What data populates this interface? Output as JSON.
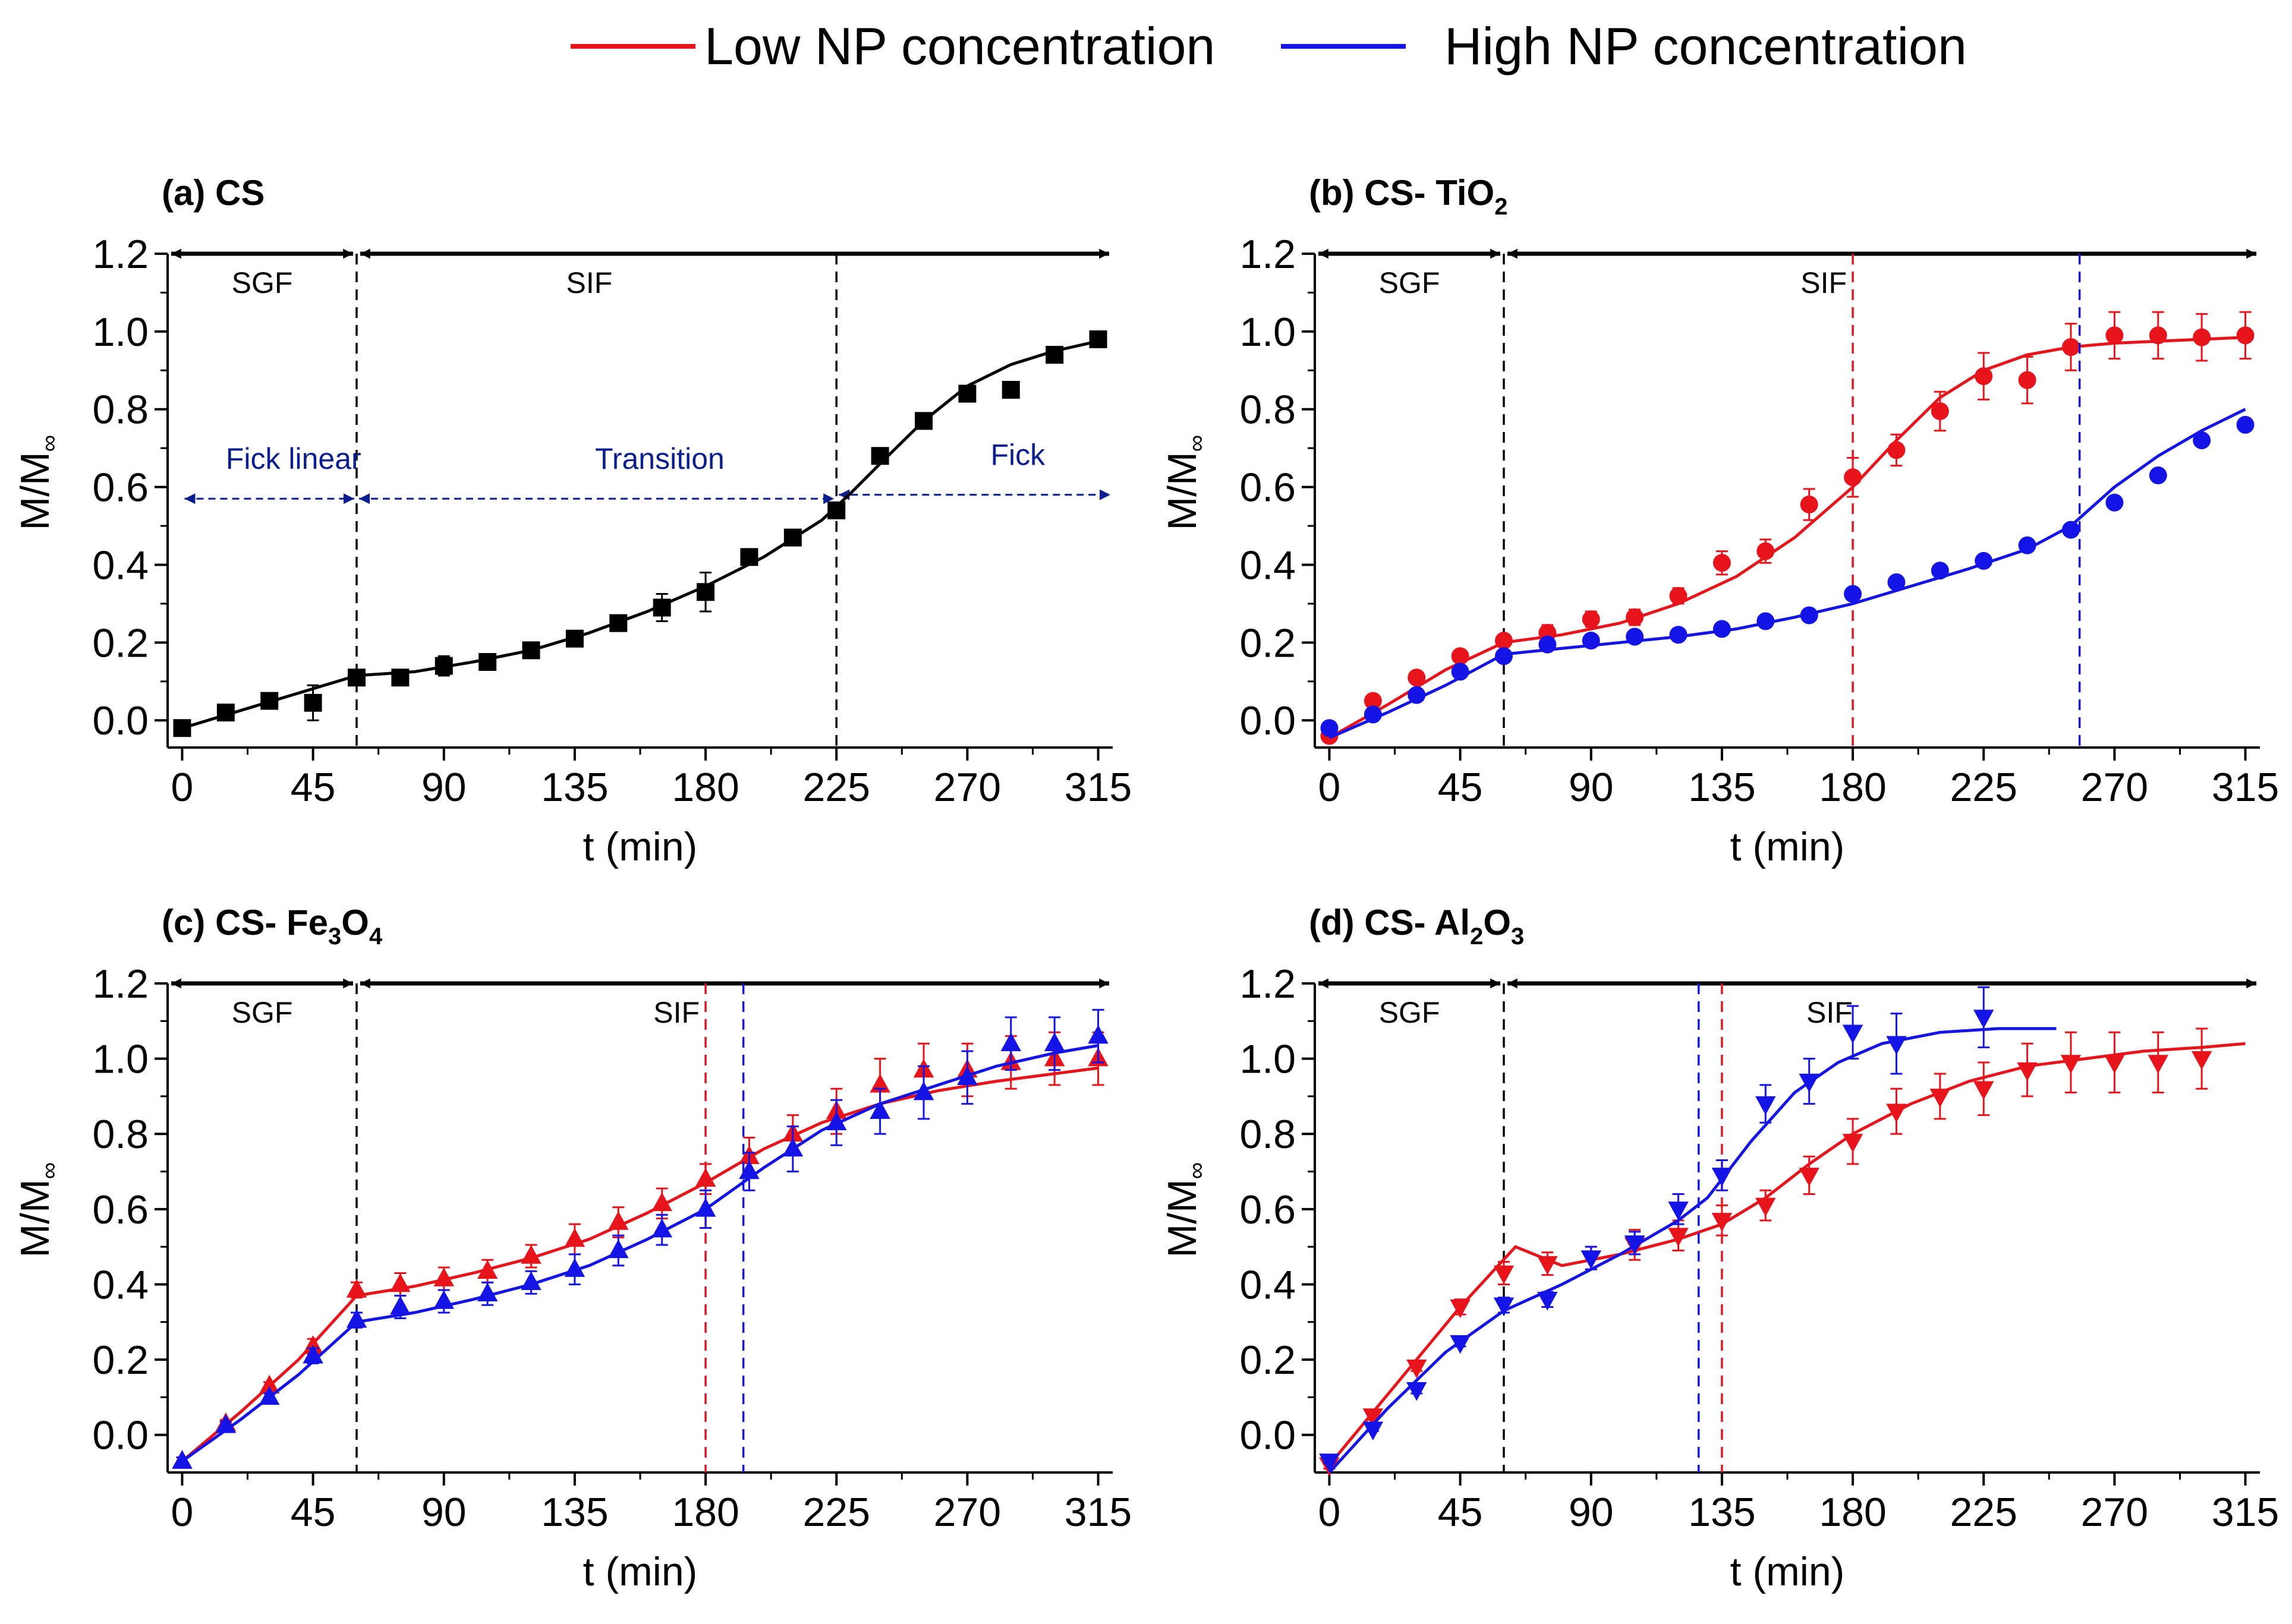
{
  "legend": [
    {
      "label": "Low NP concentration",
      "color": "#e8141c"
    },
    {
      "label": "High NP concentration",
      "color": "#1414e6"
    }
  ],
  "chart_data": [
    {
      "type": "scatter",
      "panel": "a",
      "title_prefix": "(a) CS",
      "title_formula": [],
      "xlabel": "t (min)",
      "ylabel_main": "M/M",
      "ylabel_sub": "∞",
      "xlim": [
        -5,
        320
      ],
      "ylim": [
        -0.07,
        1.2
      ],
      "xticks": [
        0,
        45,
        90,
        135,
        180,
        225,
        270,
        315
      ],
      "yticks": [
        0.0,
        0.2,
        0.4,
        0.6,
        0.8,
        1.0,
        1.2
      ],
      "phase_labels": [
        "SGF",
        "SIF"
      ],
      "phase_boundary": 60,
      "region_labels": [
        {
          "text": "Fick linear",
          "x": 15,
          "x_from": 0,
          "x_to": 60,
          "y": 0.57
        },
        {
          "text": "Transition",
          "x": 142,
          "x_from": 60,
          "x_to": 225,
          "y": 0.57
        },
        {
          "text": "Fick",
          "x": 278,
          "x_from": 225,
          "x_to": 320,
          "y": 0.58
        }
      ],
      "series": [
        {
          "name": "CS",
          "color": "#000000",
          "marker": "square",
          "x": [
            0,
            15,
            30,
            45,
            60,
            75,
            90,
            105,
            120,
            135,
            150,
            165,
            180,
            195,
            210,
            225,
            240,
            255,
            270,
            285,
            300,
            315
          ],
          "y": [
            -0.02,
            0.02,
            0.05,
            0.045,
            0.11,
            0.11,
            0.14,
            0.15,
            0.18,
            0.21,
            0.25,
            0.29,
            0.33,
            0.42,
            0.47,
            0.54,
            0.68,
            0.77,
            0.84,
            0.85,
            0.94,
            0.98
          ],
          "err": [
            0.01,
            0.02,
            0.01,
            0.045,
            0.01,
            0.02,
            0.025,
            0.015,
            0.01,
            0.02,
            0.01,
            0.035,
            0.05,
            0.01,
            0.01,
            0.01,
            0.015,
            0.01,
            0.015,
            0.02,
            0.01,
            0.01
          ],
          "fit_x": [
            0,
            20,
            40,
            60,
            80,
            100,
            120,
            140,
            160,
            180,
            200,
            220,
            230,
            240,
            255,
            270,
            285,
            300,
            315
          ],
          "fit_y": [
            -0.02,
            0.025,
            0.07,
            0.115,
            0.125,
            0.15,
            0.18,
            0.225,
            0.28,
            0.345,
            0.42,
            0.515,
            0.585,
            0.66,
            0.77,
            0.86,
            0.915,
            0.95,
            0.975
          ],
          "vline": 225
        }
      ]
    },
    {
      "type": "scatter",
      "panel": "b",
      "title_prefix": "(b) CS- TiO",
      "title_formula": [
        "2"
      ],
      "xlabel": "t (min)",
      "ylabel_main": "M/M",
      "ylabel_sub": "∞",
      "xlim": [
        -5,
        320
      ],
      "ylim": [
        -0.07,
        1.2
      ],
      "xticks": [
        0,
        45,
        90,
        135,
        180,
        225,
        270,
        315
      ],
      "yticks": [
        0.0,
        0.2,
        0.4,
        0.6,
        0.8,
        1.0,
        1.2
      ],
      "phase_labels": [
        "SGF",
        "SIF"
      ],
      "phase_boundary": 60,
      "region_labels": [],
      "series": [
        {
          "name": "Low NP concentration",
          "color": "#e8141c",
          "marker": "circle",
          "x": [
            0,
            15,
            30,
            45,
            60,
            75,
            90,
            105,
            120,
            135,
            150,
            165,
            180,
            195,
            210,
            225,
            240,
            255,
            270,
            285,
            300,
            315
          ],
          "y": [
            -0.04,
            0.05,
            0.11,
            0.165,
            0.205,
            0.225,
            0.26,
            0.265,
            0.32,
            0.405,
            0.435,
            0.555,
            0.625,
            0.695,
            0.795,
            0.885,
            0.875,
            0.96,
            0.99,
            0.99,
            0.985,
            0.99
          ],
          "err": [
            0.01,
            0.01,
            0.01,
            0.01,
            0.015,
            0.02,
            0.02,
            0.02,
            0.02,
            0.03,
            0.03,
            0.04,
            0.05,
            0.04,
            0.05,
            0.06,
            0.06,
            0.06,
            0.06,
            0.06,
            0.06,
            0.06
          ],
          "fit_x": [
            0,
            20,
            40,
            60,
            80,
            100,
            120,
            140,
            160,
            180,
            195,
            210,
            225,
            240,
            255,
            270,
            285,
            300,
            315
          ],
          "fit_y": [
            -0.045,
            0.04,
            0.13,
            0.2,
            0.22,
            0.25,
            0.3,
            0.37,
            0.47,
            0.6,
            0.72,
            0.83,
            0.9,
            0.94,
            0.96,
            0.97,
            0.975,
            0.98,
            0.985
          ],
          "vline": 180
        },
        {
          "name": "High NP concentration",
          "color": "#1414e6",
          "marker": "circle",
          "x": [
            0,
            15,
            30,
            45,
            60,
            75,
            90,
            105,
            120,
            135,
            150,
            165,
            180,
            195,
            210,
            225,
            240,
            255,
            270,
            285,
            300,
            315
          ],
          "y": [
            -0.02,
            0.015,
            0.065,
            0.125,
            0.165,
            0.195,
            0.205,
            0.215,
            0.22,
            0.235,
            0.255,
            0.27,
            0.325,
            0.355,
            0.385,
            0.41,
            0.45,
            0.49,
            0.56,
            0.63,
            0.72,
            0.76
          ],
          "err": [
            0.005,
            0.005,
            0.005,
            0.005,
            0.005,
            0.005,
            0.005,
            0.005,
            0.005,
            0.005,
            0.005,
            0.005,
            0.005,
            0.005,
            0.005,
            0.005,
            0.005,
            0.005,
            0.005,
            0.005,
            0.005,
            0.005
          ],
          "fit_x": [
            0,
            20,
            40,
            60,
            80,
            100,
            120,
            140,
            160,
            180,
            200,
            220,
            240,
            255,
            270,
            285,
            300,
            315
          ],
          "fit_y": [
            -0.045,
            0.02,
            0.09,
            0.17,
            0.185,
            0.2,
            0.215,
            0.235,
            0.265,
            0.3,
            0.345,
            0.39,
            0.44,
            0.5,
            0.6,
            0.68,
            0.745,
            0.8
          ],
          "vline": 258
        }
      ]
    },
    {
      "type": "scatter",
      "panel": "c",
      "title_prefix": "(c) CS- Fe",
      "title_formula": [
        "3",
        "O",
        "4"
      ],
      "xlabel": "t (min)",
      "ylabel_main": "M/M",
      "ylabel_sub": "∞",
      "xlim": [
        -5,
        320
      ],
      "ylim": [
        -0.1,
        1.2
      ],
      "xticks": [
        0,
        45,
        90,
        135,
        180,
        225,
        270,
        315
      ],
      "yticks": [
        0.0,
        0.2,
        0.4,
        0.6,
        0.8,
        1.0,
        1.2
      ],
      "phase_labels": [
        "SGF",
        "SIF"
      ],
      "phase_boundary": 60,
      "region_labels": [],
      "series": [
        {
          "name": "Low NP concentration",
          "color": "#e8141c",
          "marker": "triangle-up",
          "x": [
            0,
            15,
            30,
            45,
            60,
            75,
            90,
            105,
            120,
            135,
            150,
            165,
            180,
            195,
            210,
            225,
            240,
            255,
            270,
            285,
            300,
            315
          ],
          "y": [
            -0.07,
            0.03,
            0.13,
            0.235,
            0.385,
            0.4,
            0.415,
            0.435,
            0.475,
            0.52,
            0.565,
            0.615,
            0.68,
            0.74,
            0.8,
            0.86,
            0.93,
            0.97,
            0.97,
            0.99,
            1.0,
            1.0
          ],
          "err": [
            0.01,
            0.01,
            0.01,
            0.02,
            0.02,
            0.03,
            0.03,
            0.03,
            0.03,
            0.04,
            0.04,
            0.04,
            0.04,
            0.05,
            0.05,
            0.06,
            0.07,
            0.07,
            0.07,
            0.07,
            0.07,
            0.07
          ],
          "fit_x": [
            0,
            20,
            40,
            60,
            80,
            100,
            120,
            140,
            160,
            180,
            200,
            220,
            240,
            260,
            280,
            300,
            315
          ],
          "fit_y": [
            -0.07,
            0.06,
            0.2,
            0.37,
            0.395,
            0.43,
            0.47,
            0.52,
            0.59,
            0.67,
            0.76,
            0.83,
            0.88,
            0.915,
            0.94,
            0.96,
            0.975
          ],
          "vline": 180
        },
        {
          "name": "High NP concentration",
          "color": "#1414e6",
          "marker": "triangle-up",
          "x": [
            0,
            15,
            30,
            45,
            60,
            75,
            90,
            105,
            120,
            135,
            150,
            165,
            180,
            195,
            210,
            225,
            240,
            255,
            270,
            285,
            300,
            315
          ],
          "y": [
            -0.07,
            0.025,
            0.1,
            0.21,
            0.305,
            0.34,
            0.355,
            0.375,
            0.405,
            0.44,
            0.49,
            0.545,
            0.6,
            0.7,
            0.76,
            0.83,
            0.86,
            0.91,
            0.95,
            1.04,
            1.04,
            1.06
          ],
          "err": [
            0.01,
            0.01,
            0.01,
            0.02,
            0.02,
            0.03,
            0.03,
            0.03,
            0.03,
            0.04,
            0.04,
            0.04,
            0.05,
            0.05,
            0.06,
            0.06,
            0.06,
            0.07,
            0.07,
            0.07,
            0.07,
            0.07
          ],
          "fit_x": [
            0,
            20,
            40,
            60,
            80,
            100,
            120,
            140,
            160,
            180,
            200,
            220,
            240,
            260,
            280,
            300,
            315
          ],
          "fit_y": [
            -0.07,
            0.04,
            0.16,
            0.3,
            0.325,
            0.36,
            0.4,
            0.45,
            0.52,
            0.6,
            0.71,
            0.81,
            0.88,
            0.93,
            0.98,
            1.015,
            1.035
          ],
          "vline": 193
        }
      ]
    },
    {
      "type": "scatter",
      "panel": "d",
      "title_prefix": "(d) CS- Al",
      "title_formula": [
        "2",
        "O",
        "3"
      ],
      "xlabel": "t (min)",
      "ylabel_main": "M/M",
      "ylabel_sub": "∞",
      "xlim": [
        -5,
        320
      ],
      "ylim": [
        -0.1,
        1.2
      ],
      "xticks": [
        0,
        45,
        90,
        135,
        180,
        225,
        270,
        315
      ],
      "yticks": [
        0.0,
        0.2,
        0.4,
        0.6,
        0.8,
        1.0,
        1.2
      ],
      "phase_labels": [
        "SGF",
        "SIF"
      ],
      "phase_boundary": 60,
      "region_labels": [],
      "series": [
        {
          "name": "Low NP concentration",
          "color": "#e8141c",
          "marker": "triangle-down",
          "x": [
            0,
            15,
            30,
            45,
            60,
            75,
            90,
            105,
            120,
            135,
            150,
            165,
            180,
            195,
            210,
            225,
            240,
            255,
            270,
            285,
            300
          ],
          "y": [
            -0.08,
            0.05,
            0.18,
            0.34,
            0.43,
            0.455,
            0.47,
            0.505,
            0.53,
            0.57,
            0.61,
            0.69,
            0.78,
            0.86,
            0.9,
            0.92,
            0.97,
            0.99,
            0.99,
            0.99,
            1.0
          ],
          "err": [
            0.01,
            0.01,
            0.01,
            0.02,
            0.03,
            0.03,
            0.03,
            0.04,
            0.04,
            0.04,
            0.04,
            0.05,
            0.06,
            0.06,
            0.06,
            0.07,
            0.07,
            0.08,
            0.08,
            0.08,
            0.08
          ],
          "fit_x": [
            0,
            15,
            30,
            45,
            64,
            80,
            100,
            120,
            135,
            150,
            165,
            180,
            200,
            220,
            240,
            260,
            280,
            300,
            315
          ],
          "fit_y": [
            -0.08,
            0.06,
            0.2,
            0.34,
            0.5,
            0.45,
            0.48,
            0.52,
            0.56,
            0.63,
            0.72,
            0.8,
            0.88,
            0.94,
            0.98,
            1.0,
            1.02,
            1.03,
            1.04
          ],
          "vline": 135
        },
        {
          "name": "High NP concentration",
          "color": "#1414e6",
          "marker": "triangle-down",
          "x": [
            0,
            15,
            30,
            45,
            60,
            75,
            90,
            105,
            120,
            135,
            150,
            165,
            180,
            195,
            225
          ],
          "y": [
            -0.07,
            0.015,
            0.12,
            0.245,
            0.345,
            0.36,
            0.47,
            0.51,
            0.6,
            0.69,
            0.88,
            0.94,
            1.07,
            1.04,
            1.11
          ],
          "err": [
            0.005,
            0.005,
            0.01,
            0.01,
            0.02,
            0.02,
            0.03,
            0.03,
            0.04,
            0.04,
            0.05,
            0.06,
            0.07,
            0.08,
            0.08
          ],
          "fit_x": [
            0,
            20,
            40,
            60,
            80,
            100,
            120,
            130,
            145,
            160,
            175,
            190,
            210,
            230,
            250
          ],
          "fit_y": [
            -0.1,
            0.07,
            0.22,
            0.33,
            0.4,
            0.48,
            0.57,
            0.63,
            0.78,
            0.91,
            0.99,
            1.04,
            1.07,
            1.08,
            1.08
          ],
          "vline": 127
        }
      ]
    }
  ]
}
